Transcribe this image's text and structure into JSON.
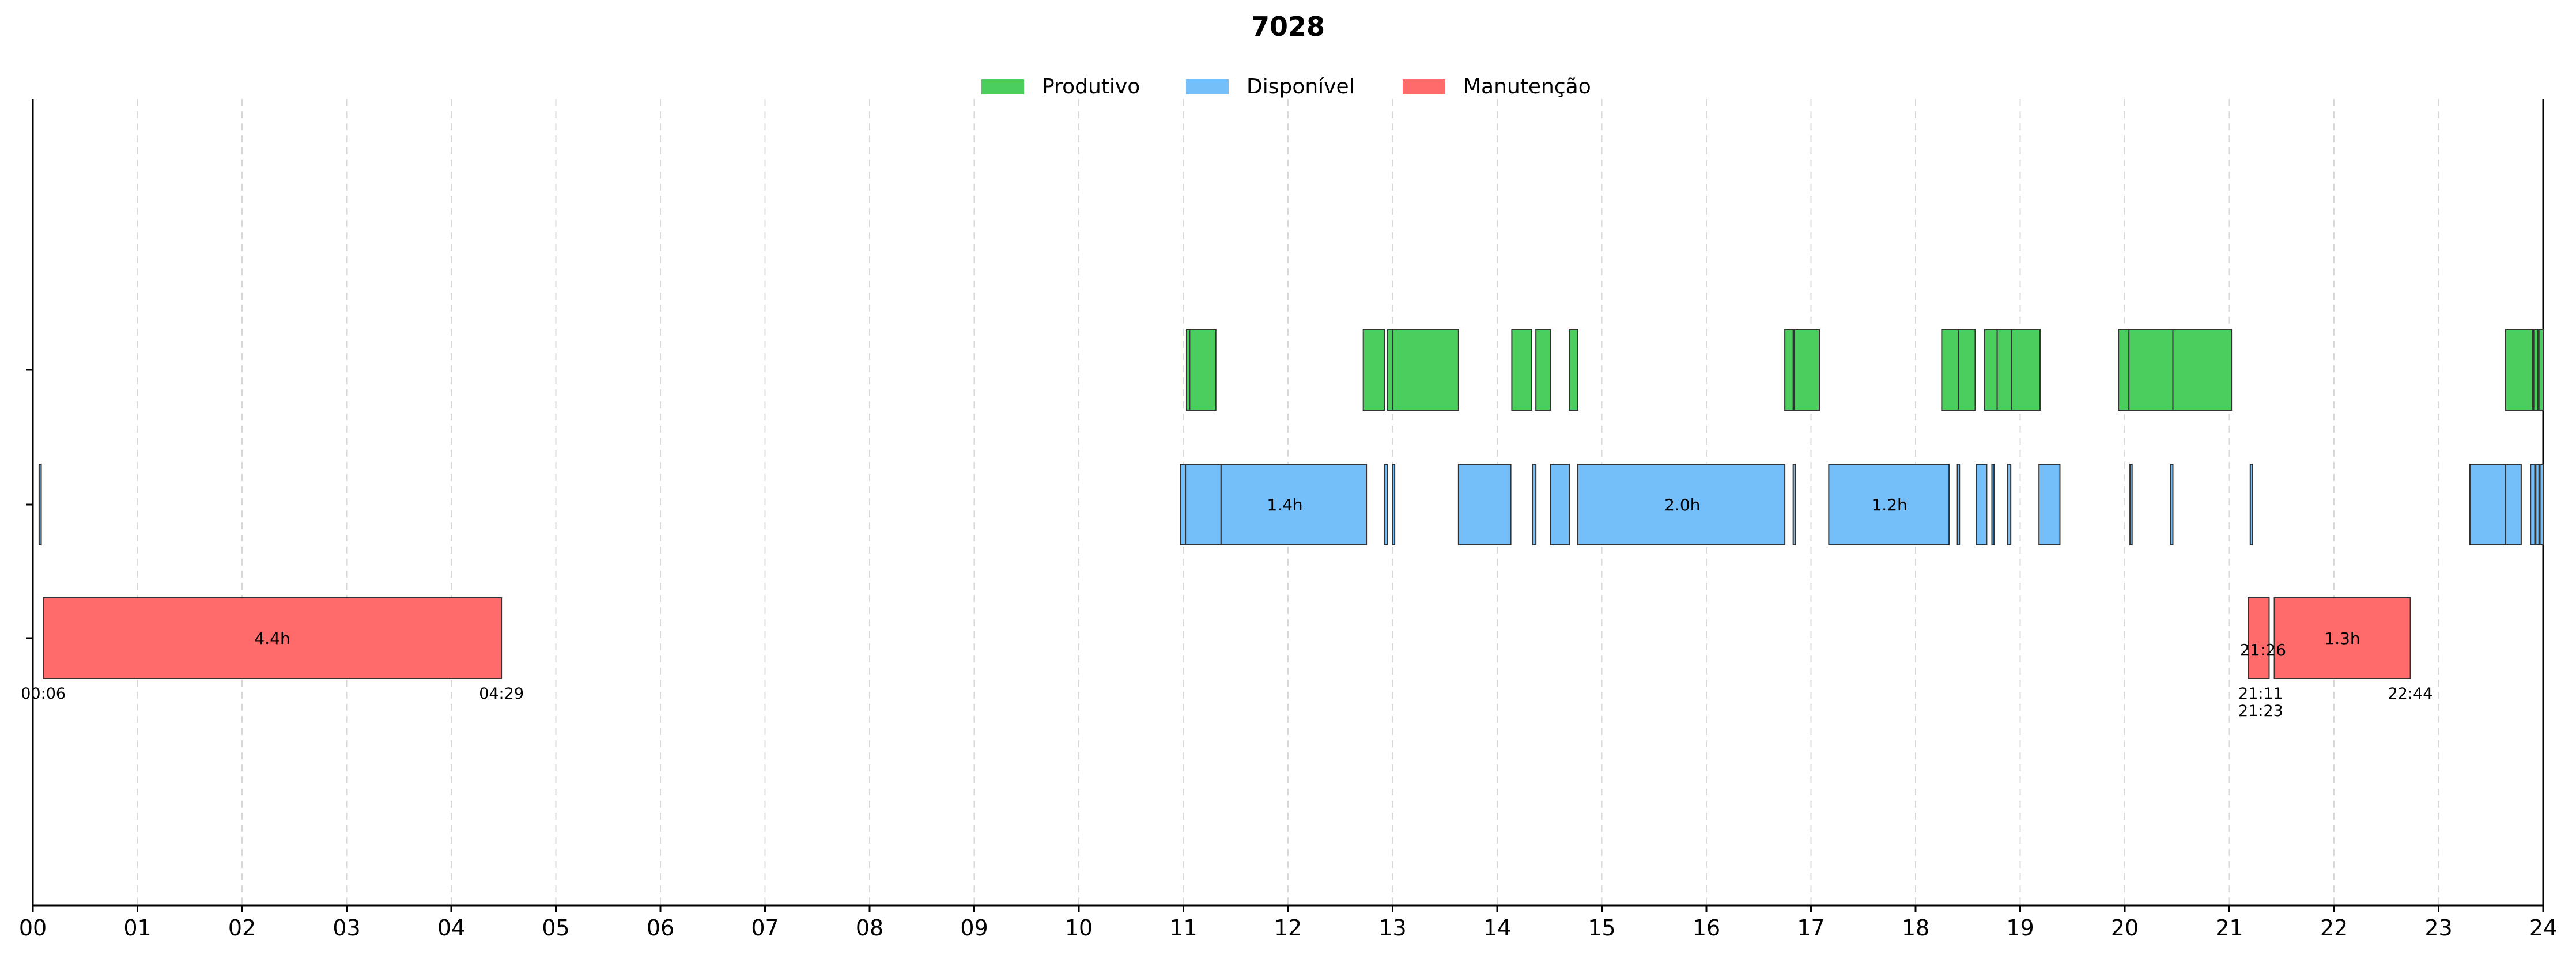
{
  "chart_data": {
    "type": "gantt",
    "title": "7028",
    "xlim": [
      0,
      24
    ],
    "x_ticks": [
      "00",
      "01",
      "02",
      "03",
      "04",
      "05",
      "06",
      "07",
      "08",
      "09",
      "10",
      "11",
      "12",
      "13",
      "14",
      "15",
      "16",
      "17",
      "18",
      "19",
      "20",
      "21",
      "22",
      "23",
      "24"
    ],
    "grid": "vertical dashed",
    "legend_position": "top-center",
    "series": [
      {
        "name": "Produtivo",
        "color": "#4cce5f",
        "intervals": [
          [
            11.03,
            11.06
          ],
          [
            11.06,
            11.31
          ],
          [
            12.72,
            12.92
          ],
          [
            12.95,
            13.0
          ],
          [
            13.0,
            13.63
          ],
          [
            14.14,
            14.33
          ],
          [
            14.37,
            14.51
          ],
          [
            14.69,
            14.77
          ],
          [
            16.75,
            16.83
          ],
          [
            16.84,
            17.08
          ],
          [
            18.25,
            18.41
          ],
          [
            18.41,
            18.57
          ],
          [
            18.66,
            18.78
          ],
          [
            18.78,
            18.92
          ],
          [
            18.92,
            19.19
          ],
          [
            19.94,
            20.04
          ],
          [
            20.04,
            20.46
          ],
          [
            20.46,
            21.02
          ],
          [
            23.64,
            23.9
          ],
          [
            23.91,
            23.95
          ],
          [
            23.96,
            24.0
          ]
        ],
        "labels": []
      },
      {
        "name": "Disponível",
        "color": "#74befa",
        "intervals": [
          [
            0.06,
            0.08
          ],
          [
            10.97,
            11.02
          ],
          [
            11.02,
            11.36
          ],
          [
            11.36,
            12.75
          ],
          [
            12.92,
            12.95
          ],
          [
            13.0,
            13.02
          ],
          [
            13.63,
            14.13
          ],
          [
            14.34,
            14.37
          ],
          [
            14.51,
            14.69
          ],
          [
            14.77,
            16.75
          ],
          [
            16.83,
            16.85
          ],
          [
            17.17,
            18.32
          ],
          [
            18.4,
            18.42
          ],
          [
            18.58,
            18.68
          ],
          [
            18.73,
            18.75
          ],
          [
            18.88,
            18.91
          ],
          [
            19.18,
            19.38
          ],
          [
            20.05,
            20.07
          ],
          [
            20.44,
            20.46
          ],
          [
            21.2,
            21.22
          ],
          [
            23.3,
            23.64
          ],
          [
            23.64,
            23.79
          ],
          [
            23.88,
            23.92
          ],
          [
            23.93,
            23.96
          ],
          [
            23.97,
            24.0
          ]
        ],
        "labels": [
          {
            "value": 11.97,
            "text": "1.4h"
          },
          {
            "value": 15.77,
            "text": "2.0h"
          },
          {
            "value": 17.75,
            "text": "1.2h"
          }
        ]
      },
      {
        "name": "Manutenção",
        "color": "#ff6b6b",
        "intervals": [
          [
            0.1,
            4.48
          ],
          [
            21.18,
            21.38
          ],
          [
            21.43,
            22.73
          ]
        ],
        "labels": [
          {
            "value": 2.29,
            "text": "4.4h"
          },
          {
            "value": 22.08,
            "text": "1.3h"
          },
          {
            "value": 21.32,
            "text": "21:26"
          }
        ],
        "time_annotations": [
          {
            "value": 0.1,
            "line": 1,
            "text": "00:06"
          },
          {
            "value": 4.48,
            "line": 1,
            "text": "04:29"
          },
          {
            "value": 21.3,
            "line": 1,
            "text": "21:11"
          },
          {
            "value": 21.3,
            "line": 2,
            "text": "21:23"
          },
          {
            "value": 22.73,
            "line": 1,
            "text": "22:44"
          }
        ]
      }
    ]
  }
}
